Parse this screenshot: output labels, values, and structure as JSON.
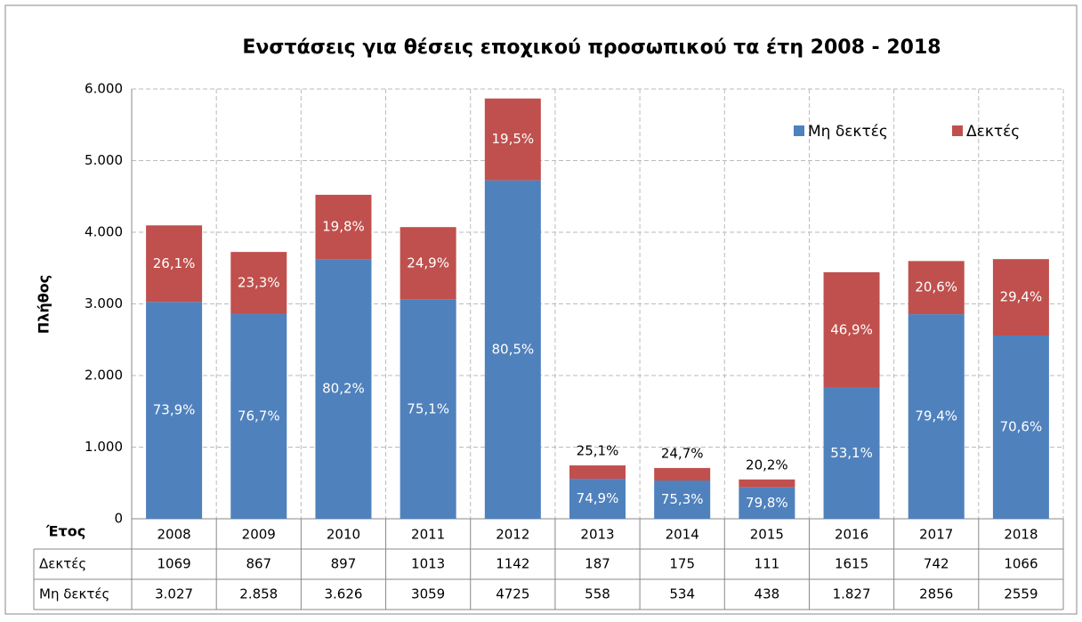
{
  "chart_data": {
    "type": "bar",
    "stacked": true,
    "title": "Ενστάσεις για θέσεις εποχικού προσωπικού τα έτη 2008 - 2018",
    "y_label": "Πλήθος",
    "table_header": "Έτος",
    "categories": [
      "2008",
      "2009",
      "2010",
      "2011",
      "2012",
      "2013",
      "2014",
      "2015",
      "2016",
      "2017",
      "2018"
    ],
    "series": [
      {
        "name": "Μη δεκτές",
        "color": "#4f81bd",
        "values": [
          3027,
          2858,
          3626,
          3059,
          4725,
          558,
          534,
          438,
          1827,
          2856,
          2559
        ],
        "value_labels": [
          "3.027",
          "2.858",
          "3.626",
          "3059",
          "4725",
          "558",
          "534",
          "438",
          "1.827",
          "2856",
          "2559"
        ],
        "percentages": [
          73.9,
          76.7,
          80.2,
          75.1,
          80.5,
          74.9,
          75.3,
          79.8,
          53.1,
          79.4,
          70.6
        ],
        "percentage_labels": [
          "73,9%",
          "76,7%",
          "80,2%",
          "75,1%",
          "80,5%",
          "74,9%",
          "75,3%",
          "79,8%",
          "53,1%",
          "79,4%",
          "70,6%"
        ]
      },
      {
        "name": "Δεκτές",
        "color": "#c0504d",
        "values": [
          1069,
          867,
          897,
          1013,
          1142,
          187,
          175,
          111,
          1615,
          742,
          1066
        ],
        "percentages": [
          26.1,
          23.3,
          19.8,
          24.9,
          19.5,
          25.1,
          24.7,
          20.2,
          46.9,
          20.6,
          29.4
        ],
        "percentage_labels": [
          "26,1%",
          "23,3%",
          "19,8%",
          "24,9%",
          "19,5%",
          "25,1%",
          "24,7%",
          "20,2%",
          "46,9%",
          "20,6%",
          "29,4%"
        ]
      }
    ],
    "ylim": [
      0,
      6000
    ],
    "yticks": [
      0,
      {
        "value": 1000,
        "label": "1.000"
      },
      {
        "value": 2000,
        "label": "2.000"
      },
      {
        "value": 3000,
        "label": "3.000"
      },
      {
        "value": 4000,
        "label": "4.000"
      },
      {
        "value": 5000,
        "label": "5.000"
      },
      {
        "value": 6000,
        "label": "6.000"
      }
    ],
    "grid": true,
    "legend": "top-right"
  }
}
